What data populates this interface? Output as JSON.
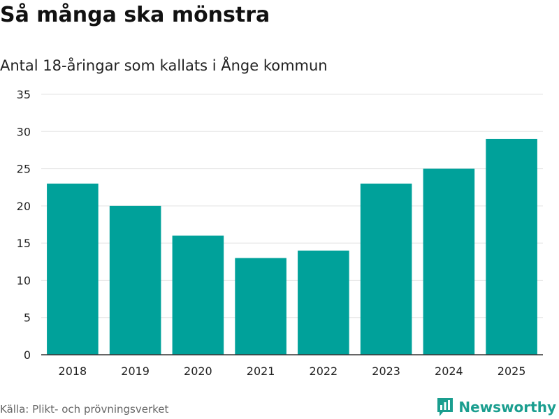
{
  "title": "Så många ska mönstra",
  "subtitle": "Antal 18-åringar som kallats i Ånge kommun",
  "source": "Källa: Plikt- och prövningsverket",
  "brand": {
    "name": "Newsworthy",
    "icon": "newsworthy-logo-icon",
    "color": "#1a9e8f"
  },
  "colors": {
    "bar": "#00a19a",
    "grid": "#e3e3e3",
    "axis": "#333333"
  },
  "chart_data": {
    "type": "bar",
    "title": "Så många ska mönstra",
    "subtitle": "Antal 18-åringar som kallats i Ånge kommun",
    "categories": [
      "2018",
      "2019",
      "2020",
      "2021",
      "2022",
      "2023",
      "2024",
      "2025"
    ],
    "values": [
      23,
      20,
      16,
      13,
      14,
      23,
      25,
      29
    ],
    "xlabel": "",
    "ylabel": "",
    "ylim": [
      0,
      35
    ],
    "yticks": [
      0,
      5,
      10,
      15,
      20,
      25,
      30,
      35
    ],
    "grid": true,
    "legend": "none"
  }
}
